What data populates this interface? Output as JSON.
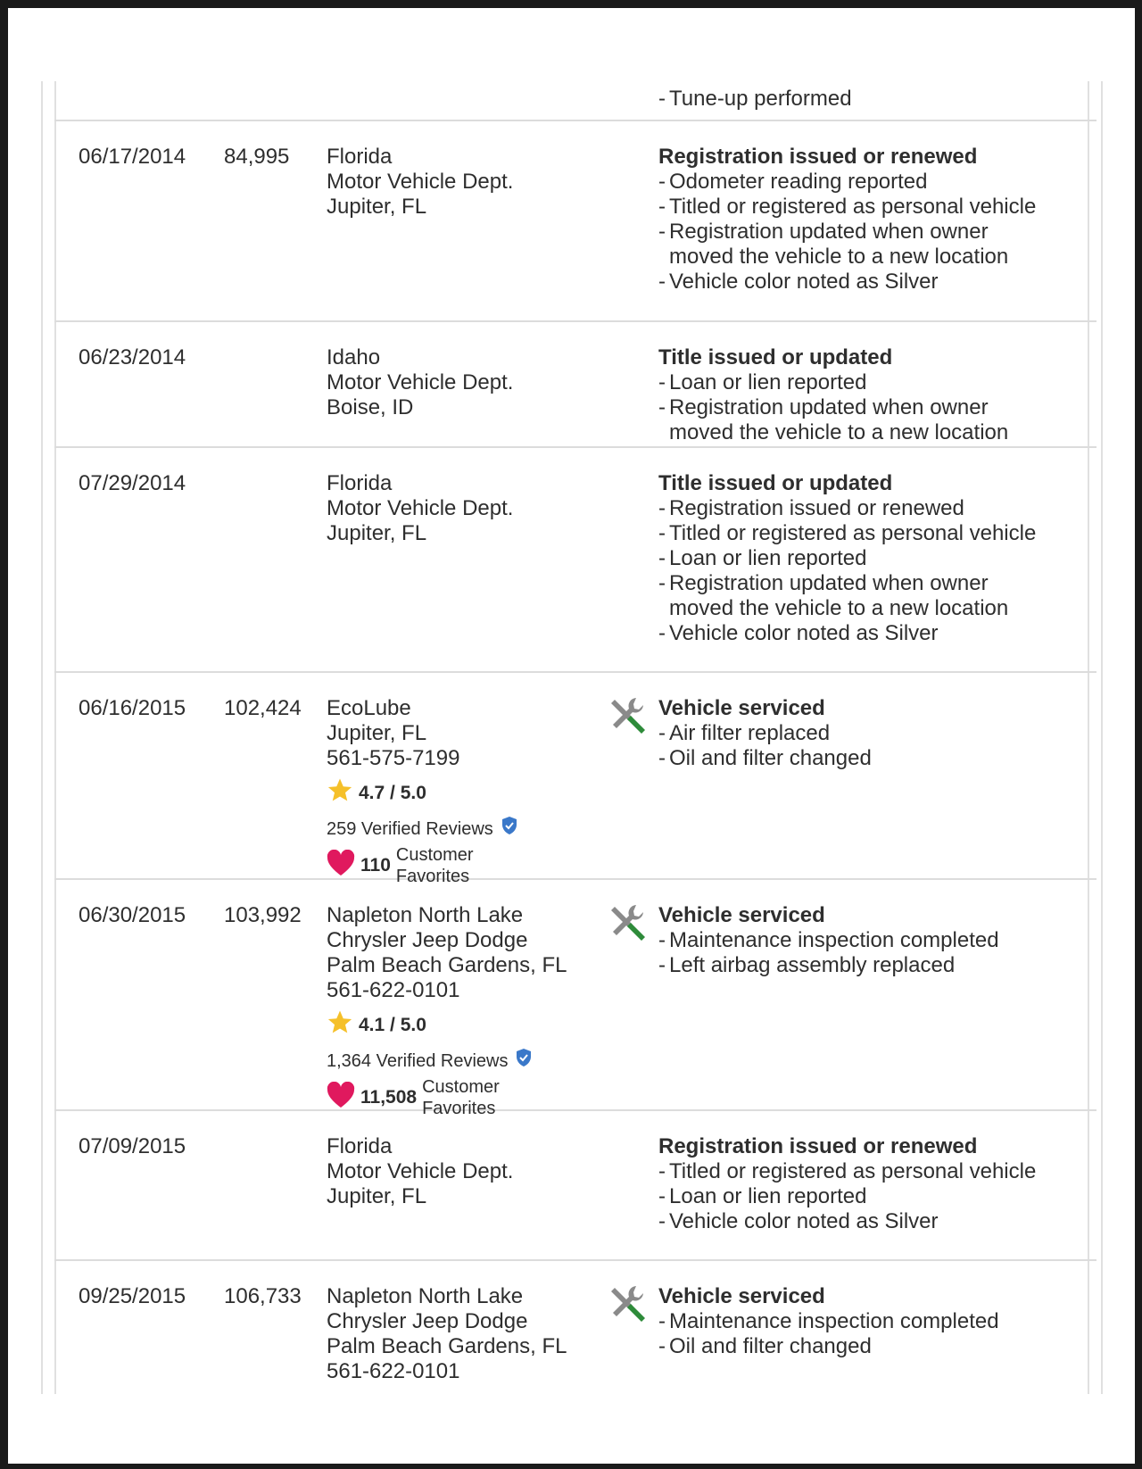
{
  "history": {
    "partial_top_item": "Tune-up performed",
    "rows": [
      {
        "date": "06/17/2014",
        "odometer": "84,995",
        "source": [
          "Florida",
          "Motor Vehicle Dept.",
          "Jupiter, FL"
        ],
        "title": "Registration issued or renewed",
        "items": [
          "Odometer reading reported",
          "Titled or registered as personal vehicle",
          "Registration updated when owner moved the vehicle to a new location",
          "Vehicle color noted as Silver"
        ]
      },
      {
        "date": "06/23/2014",
        "odometer": "",
        "source": [
          "Idaho",
          "Motor Vehicle Dept.",
          "Boise, ID"
        ],
        "title": "Title issued or updated",
        "items": [
          "Loan or lien reported",
          "Registration updated when owner moved the vehicle to a new location"
        ]
      },
      {
        "date": "07/29/2014",
        "odometer": "",
        "source": [
          "Florida",
          "Motor Vehicle Dept.",
          "Jupiter, FL"
        ],
        "title": "Title issued or updated",
        "items": [
          "Registration issued or renewed",
          "Titled or registered as personal vehicle",
          "Loan or lien reported",
          "Registration updated when owner moved the vehicle to a new location",
          "Vehicle color noted as Silver"
        ]
      },
      {
        "date": "06/16/2015",
        "odometer": "102,424",
        "source": [
          "EcoLube",
          "Jupiter, FL",
          "561-575-7199"
        ],
        "icon": "service-tools-icon",
        "rating": "4.7 / 5.0",
        "reviews": "259 Verified Reviews",
        "favorites": "110",
        "favorites_label": [
          "Customer",
          "Favorites"
        ],
        "title": "Vehicle serviced",
        "items": [
          "Air filter replaced",
          "Oil and filter changed"
        ]
      },
      {
        "date": "06/30/2015",
        "odometer": "103,992",
        "source": [
          "Napleton North Lake",
          "Chrysler Jeep Dodge",
          "Palm Beach Gardens, FL",
          "561-622-0101"
        ],
        "icon": "service-tools-icon",
        "rating": "4.1 / 5.0",
        "reviews": "1,364 Verified Reviews",
        "favorites": "11,508",
        "favorites_label": [
          "Customer",
          "Favorites"
        ],
        "title": "Vehicle serviced",
        "items": [
          "Maintenance inspection completed",
          "Left airbag assembly replaced"
        ]
      },
      {
        "date": "07/09/2015",
        "odometer": "",
        "source": [
          "Florida",
          "Motor Vehicle Dept.",
          "Jupiter, FL"
        ],
        "title": "Registration issued or renewed",
        "items": [
          "Titled or registered as personal vehicle",
          "Loan or lien reported",
          "Vehicle color noted as Silver"
        ]
      },
      {
        "date": "09/25/2015",
        "odometer": "106,733",
        "source": [
          "Napleton North Lake",
          "Chrysler Jeep Dodge",
          "Palm Beach Gardens, FL",
          "561-622-0101"
        ],
        "icon": "service-tools-icon",
        "title": "Vehicle serviced",
        "items": [
          "Maintenance inspection completed",
          "Oil and filter changed"
        ]
      }
    ]
  },
  "colors": {
    "star": "#f5c02a",
    "heart": "#e0195e",
    "verified": "#3a78c9",
    "wrench_green": "#2e8b3a",
    "wrench_gray": "#8a8a8a"
  }
}
